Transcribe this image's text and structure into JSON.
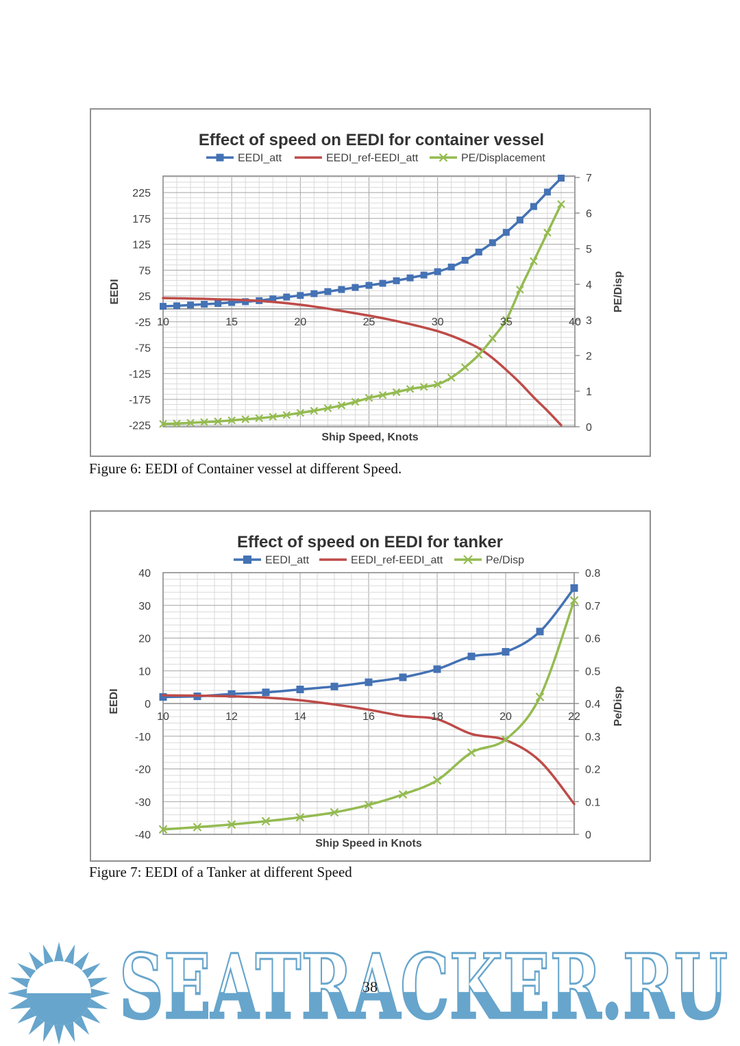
{
  "page": {
    "number": "38",
    "captions": {
      "fig6": "Figure 6: EEDI of Container vessel at different Speed.",
      "fig7": "Figure 7: EEDI of a Tanker at different Speed"
    }
  },
  "watermark": {
    "text": "SEATRACKER.RU",
    "icon": "sun-icon",
    "color": "#67a5cc"
  },
  "colors": {
    "series_blue": "#4472b4",
    "series_red": "#be4b48",
    "series_green": "#94bb51",
    "grid_minor": "#d9d9d9",
    "grid_major": "#a3a3a3",
    "axis_line": "#8a8a8a",
    "chart_text": "#3f3f3f"
  },
  "chart_data": [
    {
      "type": "line",
      "title": "Effect of speed on EEDI for container vessel",
      "xlabel": "Ship Speed, Knots",
      "ylabel_left": "EEDI",
      "ylabel_right": "PE/Disp",
      "legend_position": "top",
      "grid": true,
      "x_range": [
        10,
        40
      ],
      "x_minor": 1,
      "x_major": 5,
      "x_ticks": [
        10,
        15,
        20,
        25,
        30,
        35,
        40
      ],
      "left_axis": {
        "min": -228,
        "max": 257,
        "grid_start": -225,
        "grid_step": 10,
        "major_every": 50,
        "ticks": [
          225,
          175,
          125,
          75,
          25,
          -25,
          -75,
          -125,
          -175,
          -225
        ]
      },
      "right_axis": {
        "min": 0,
        "max": 7.04,
        "ticks": [
          7,
          6,
          5,
          4,
          3,
          2,
          1,
          0
        ]
      },
      "x": [
        10,
        11,
        12,
        13,
        14,
        15,
        16,
        17,
        18,
        19,
        20,
        21,
        22,
        23,
        24,
        25,
        26,
        27,
        28,
        29,
        30,
        31,
        32,
        33,
        34,
        35,
        36,
        37,
        38,
        39
      ],
      "series": [
        {
          "name": "EEDI_att",
          "axis": "left",
          "color": "#4472b4",
          "marker": "square",
          "values": [
            5,
            6,
            7.5,
            9,
            10.5,
            12.5,
            14,
            16,
            19.5,
            23,
            26,
            29.5,
            33.5,
            37.5,
            41.5,
            45.5,
            49.5,
            54.5,
            60,
            65.5,
            72,
            81,
            94,
            110,
            128,
            148,
            172,
            198,
            226,
            253
          ]
        },
        {
          "name": "EEDI_ref-EEDI_att",
          "axis": "left",
          "color": "#be4b48",
          "marker": "none",
          "values": [
            21,
            20.5,
            20,
            19.5,
            18.5,
            18,
            17,
            15.5,
            13.5,
            11,
            8,
            4.5,
            0.5,
            -4,
            -8.5,
            -13,
            -18,
            -23.5,
            -29.5,
            -36,
            -43,
            -52,
            -63,
            -76,
            -95,
            -118,
            -143,
            -171,
            -197,
            -225
          ]
        },
        {
          "name": "PE/Displacement",
          "axis": "right",
          "color": "#94bb51",
          "marker": "x",
          "values": [
            0.08,
            0.09,
            0.11,
            0.13,
            0.15,
            0.18,
            0.21,
            0.24,
            0.28,
            0.33,
            0.39,
            0.45,
            0.52,
            0.6,
            0.7,
            0.81,
            0.89,
            0.97,
            1.06,
            1.12,
            1.19,
            1.38,
            1.67,
            2.02,
            2.48,
            3.0,
            3.85,
            4.65,
            5.45,
            6.25
          ]
        }
      ]
    },
    {
      "type": "line",
      "title": "Effect of speed on EEDI for tanker",
      "xlabel": "Ship Speed in Knots",
      "ylabel_left": "EEDI",
      "ylabel_right": "Pe/Disp",
      "legend_position": "top",
      "grid": true,
      "x_range": [
        10,
        22
      ],
      "x_minor": 0.5,
      "x_major": 2,
      "x_ticks": [
        10,
        12,
        14,
        16,
        18,
        20,
        22
      ],
      "left_axis": {
        "min": -40,
        "max": 40,
        "grid_start": -40,
        "grid_step": 2,
        "major_every": 10,
        "ticks": [
          40,
          30,
          20,
          10,
          0,
          -10,
          -20,
          -30,
          -40
        ]
      },
      "right_axis": {
        "min": 0,
        "max": 0.8,
        "ticks": [
          0.8,
          0.7,
          0.6,
          0.5,
          0.4,
          0.3,
          0.2,
          0.1,
          0
        ]
      },
      "x": [
        10,
        11,
        12,
        13,
        14,
        15,
        16,
        17,
        18,
        19,
        20,
        21,
        22
      ],
      "series": [
        {
          "name": "EEDI_att",
          "axis": "left",
          "color": "#4472b4",
          "marker": "square",
          "values": [
            2,
            2.2,
            2.9,
            3.4,
            4.3,
            5.2,
            6.5,
            8,
            10.5,
            14.4,
            15.8,
            22,
            35.3
          ]
        },
        {
          "name": "EEDI_ref-EEDI_att",
          "axis": "left",
          "color": "#be4b48",
          "marker": "none",
          "values": [
            2.5,
            2.4,
            2.2,
            1.8,
            1.0,
            -0.3,
            -1.9,
            -3.8,
            -4.8,
            -9.3,
            -11.2,
            -17.6,
            -30.7
          ]
        },
        {
          "name": "Pe/Disp",
          "axis": "right",
          "color": "#94bb51",
          "marker": "x",
          "values": [
            0.015,
            0.022,
            0.03,
            0.04,
            0.052,
            0.067,
            0.09,
            0.122,
            0.165,
            0.25,
            0.29,
            0.42,
            0.715
          ]
        }
      ]
    }
  ]
}
